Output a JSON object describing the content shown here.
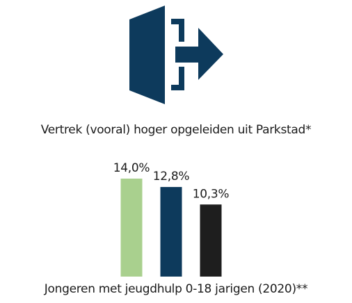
{
  "chart_data": {
    "type": "bar",
    "subtitle": "Vertrek (vooral) hoger opgeleiden uit Parkstad*",
    "title": "Jongeren met jeugdhulp 0-18 jarigen (2020)**",
    "categories": [
      null,
      null,
      null
    ],
    "values": [
      14.0,
      12.8,
      10.3
    ],
    "value_labels": [
      "14,0%",
      "12,8%",
      "10,3%"
    ],
    "colors": [
      "#a9d08e",
      "#0d3a5c",
      "#1e1e1e"
    ],
    "ylim": [
      0,
      14
    ]
  }
}
